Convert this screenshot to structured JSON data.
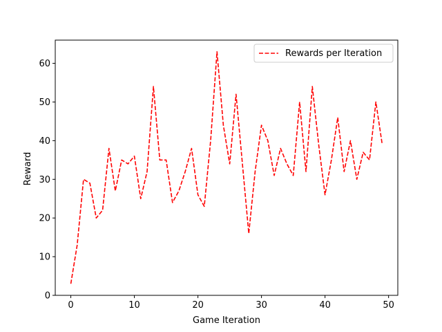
{
  "chart_data": {
    "type": "line",
    "xlabel": "Game Iteration",
    "ylabel": "Reward",
    "xlim": [
      -2.45,
      51.45
    ],
    "ylim": [
      0,
      66
    ],
    "xticks": [
      0,
      10,
      20,
      30,
      40,
      50
    ],
    "yticks": [
      0,
      10,
      20,
      30,
      40,
      50,
      60
    ],
    "grid": false,
    "legend_position": "top-right",
    "series": [
      {
        "name": "Rewards per Iteration",
        "color": "#ff0000",
        "line_style": "dashed",
        "x": [
          0,
          1,
          2,
          3,
          4,
          5,
          6,
          7,
          8,
          9,
          10,
          11,
          12,
          13,
          14,
          15,
          16,
          17,
          18,
          19,
          20,
          21,
          22,
          23,
          24,
          25,
          26,
          27,
          28,
          29,
          30,
          31,
          32,
          33,
          34,
          35,
          36,
          37,
          38,
          39,
          40,
          41,
          42,
          43,
          44,
          45,
          46,
          47,
          48,
          49
        ],
        "values": [
          3,
          13,
          30,
          29,
          20,
          22,
          38,
          27,
          35,
          34,
          36,
          25,
          32,
          54,
          35,
          35,
          24,
          27,
          32,
          38,
          26,
          23,
          40,
          63,
          44,
          34,
          52,
          34,
          16,
          32,
          44,
          40,
          31,
          38,
          34,
          31,
          50,
          32,
          54,
          39,
          26,
          35,
          46,
          32,
          40,
          30,
          37,
          35,
          50,
          39
        ]
      }
    ]
  }
}
